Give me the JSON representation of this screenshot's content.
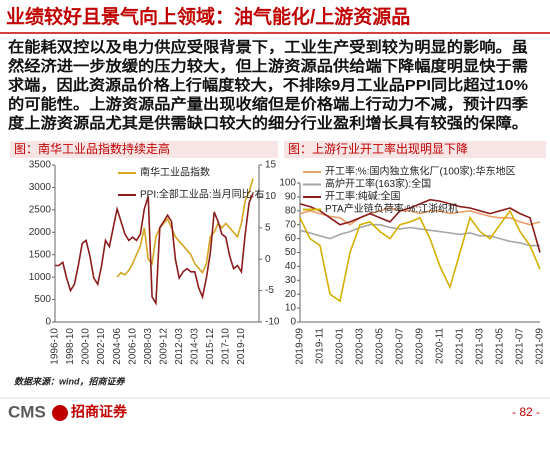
{
  "header": {
    "title": "业绩较好且景气向上领域：油气能化/上游资源品"
  },
  "body": {
    "lines": [
      "在能耗双控以及电力供应受限背景下，工业生产受到较为明显的影响。虽",
      "然经济进一步放缓的压力较大，但上游资源品供给端下降幅度明显快于需",
      "求端，因此资源品价格上行幅度较大，不排除9月工业品PPI同比超过10%",
      "的可能性。上游资源品产量出现收缩但是价格端上行动力不减，预计四季",
      "度上游资源品尤其是供需缺口较大的细分行业盈利增长具有较强的保障。"
    ]
  },
  "chart_data": [
    {
      "type": "line",
      "title": "图：南华工业品指数持续走高",
      "categories": [
        "1996-10",
        null,
        null,
        null,
        "1998-10",
        null,
        null,
        null,
        "2000-10",
        null,
        null,
        null,
        "2002-10",
        null,
        null,
        null,
        "2004-06",
        null,
        null,
        null,
        "2006-10",
        null,
        null,
        null,
        "2008-03",
        null,
        null,
        null,
        "2009-12",
        null,
        null,
        null,
        "2012-03",
        null,
        null,
        null,
        "2014-03",
        null,
        null,
        null,
        "2015-12",
        null,
        null,
        null,
        "2017-10",
        null,
        null,
        null,
        "2019-10",
        null,
        null,
        null
      ],
      "series": [
        {
          "name": "南华工业品指数",
          "color": "#d4a520",
          "values": [
            null,
            null,
            null,
            null,
            null,
            null,
            null,
            null,
            null,
            null,
            null,
            null,
            null,
            null,
            null,
            null,
            1000,
            1100,
            1050,
            1150,
            1300,
            1500,
            1700,
            2100,
            1400,
            1300,
            1900,
            2100,
            2200,
            2300,
            2100,
            1900,
            1800,
            1700,
            1600,
            1500,
            1300,
            1200,
            1100,
            1300,
            1900,
            2000,
            2200,
            2100,
            2200,
            2100,
            2000,
            1900,
            2200,
            2700,
            2900,
            3200
          ]
        },
        {
          "name": "PPI:全部工业品:当月同比:右",
          "color": "#8b1c1c",
          "axis": "y2",
          "values": [
            -1,
            -1,
            -0.5,
            -3,
            -5,
            -4,
            -1,
            2.5,
            3,
            0.5,
            -3,
            -4,
            -1,
            3,
            2,
            5,
            8,
            6,
            4,
            3,
            3.5,
            3,
            4,
            8,
            10,
            -6,
            -7,
            5,
            6,
            7,
            6,
            0,
            -3,
            -2,
            -1.5,
            -2,
            -2,
            -4.5,
            -6,
            -3,
            1,
            7.5,
            6,
            4,
            3.5,
            0.5,
            -1.5,
            -1,
            -2,
            4,
            9,
            10.5
          ]
        }
      ],
      "ylim": [
        0,
        3500
      ],
      "yticks": [
        0,
        500,
        1000,
        1500,
        2000,
        2500,
        3000,
        3500
      ],
      "y2lim": [
        -10,
        15
      ],
      "y2ticks": [
        -10,
        -5,
        0,
        5,
        10,
        15
      ],
      "legend": "upper center"
    },
    {
      "type": "line",
      "title": "图：上游行业开工率出现明显下降",
      "categories": [
        "2019-09",
        null,
        "2019-11",
        null,
        "2020-01",
        null,
        "2020-03",
        null,
        "2020-05",
        null,
        "2020-07",
        null,
        "2020-09",
        null,
        "2020-11",
        null,
        "2021-01",
        null,
        "2021-03",
        null,
        "2021-05",
        null,
        "2021-07",
        null,
        "2021-09"
      ],
      "series": [
        {
          "name": "开工率:%:国内独立焦化厂(100家):华东地区",
          "color": "#e8a06a",
          "values": [
            78,
            80,
            78,
            76,
            75,
            70,
            75,
            78,
            80,
            82,
            80,
            80,
            78,
            80,
            80,
            78,
            79,
            80,
            78,
            76,
            75,
            75,
            72,
            70,
            72
          ]
        },
        {
          "name": "高炉开工率(163家):全国",
          "color": "#a6a6a6",
          "values": [
            66,
            64,
            62,
            60,
            63,
            65,
            68,
            70,
            70,
            68,
            67,
            68,
            67,
            66,
            65,
            64,
            63,
            64,
            62,
            62,
            60,
            58,
            57,
            55,
            55
          ]
        },
        {
          "name": "开工率:纯碱:全国",
          "color": "#8b1c1c",
          "values": [
            85,
            83,
            80,
            75,
            70,
            72,
            75,
            78,
            75,
            72,
            80,
            82,
            85,
            88,
            87,
            85,
            83,
            82,
            80,
            78,
            80,
            82,
            78,
            75,
            50
          ]
        },
        {
          "name": "PTA产业链负荷率:%:江浙织机",
          "color": "#d4b000",
          "values": [
            75,
            60,
            55,
            20,
            15,
            50,
            70,
            72,
            65,
            60,
            70,
            72,
            75,
            60,
            40,
            25,
            50,
            75,
            65,
            60,
            70,
            80,
            65,
            55,
            38
          ]
        }
      ],
      "ylim": [
        0,
        100
      ],
      "yticks": [
        0,
        10,
        20,
        30,
        40,
        50,
        60,
        70,
        80,
        90,
        100
      ],
      "legend": "upper left"
    }
  ],
  "source": "数据来源：wind，招商证券",
  "footer": {
    "logo": "CMS",
    "company": "招商证券",
    "page": "- 82 -"
  }
}
